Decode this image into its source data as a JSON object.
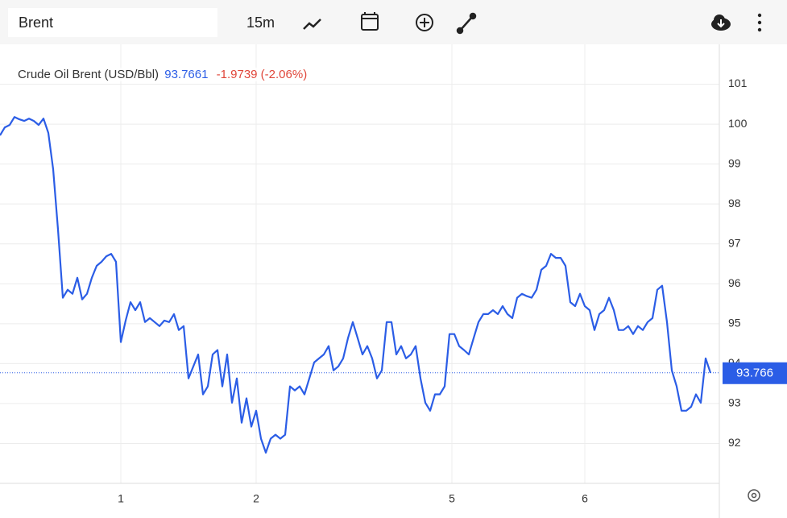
{
  "toolbar": {
    "symbol": "Brent",
    "interval": "15m"
  },
  "chart_data": {
    "type": "line",
    "title": "Crude Oil Brent (USD/Bbl)",
    "last_value_label": "93.7661",
    "change_label": "-1.9739 (-2.06%)",
    "price_tag": "93.766",
    "series": [
      {
        "name": "Crude Oil Brent (USD/Bbl)",
        "color": "#2b5de6",
        "values": [
          99.72,
          99.92,
          99.98,
          100.18,
          100.12,
          100.08,
          100.14,
          100.08,
          99.98,
          100.14,
          99.78,
          98.87,
          97.36,
          95.65,
          95.85,
          95.75,
          96.15,
          95.61,
          95.75,
          96.15,
          96.45,
          96.55,
          96.69,
          96.75,
          96.55,
          94.54,
          95.08,
          95.54,
          95.34,
          95.54,
          95.04,
          95.14,
          95.04,
          94.94,
          95.08,
          95.04,
          95.24,
          94.84,
          94.94,
          93.63,
          93.93,
          94.23,
          93.23,
          93.43,
          94.23,
          94.34,
          93.43,
          94.23,
          93.02,
          93.63,
          92.52,
          93.13,
          92.42,
          92.82,
          92.12,
          91.77,
          92.12,
          92.22,
          92.12,
          92.22,
          93.43,
          93.33,
          93.43,
          93.23,
          93.63,
          94.03,
          94.13,
          94.23,
          94.44,
          93.83,
          93.93,
          94.13,
          94.64,
          95.04,
          94.64,
          94.23,
          94.44,
          94.13,
          93.63,
          93.83,
          95.04,
          95.04,
          94.23,
          94.44,
          94.13,
          94.23,
          94.44,
          93.63,
          93.02,
          92.82,
          93.23,
          93.23,
          93.43,
          94.74,
          94.74,
          94.44,
          94.34,
          94.23,
          94.64,
          95.04,
          95.24,
          95.24,
          95.34,
          95.24,
          95.44,
          95.24,
          95.14,
          95.65,
          95.75,
          95.69,
          95.65,
          95.85,
          96.35,
          96.45,
          96.75,
          96.65,
          96.65,
          96.45,
          95.54,
          95.44,
          95.75,
          95.44,
          95.34,
          94.84,
          95.24,
          95.34,
          95.65,
          95.34,
          94.84,
          94.84,
          94.94,
          94.74,
          94.94,
          94.84,
          95.04,
          95.14,
          95.85,
          95.95,
          95.04,
          93.83,
          93.43,
          92.82,
          92.82,
          92.92,
          93.23,
          93.02,
          94.13,
          93.77
        ]
      }
    ],
    "xlim": [
      0,
      147
    ],
    "xticks": [
      {
        "value": 25,
        "label": "1"
      },
      {
        "value": 53,
        "label": "2"
      },
      {
        "value": 93.5,
        "label": "5"
      },
      {
        "value": 121,
        "label": "6"
      }
    ],
    "ylim": [
      91,
      102
    ],
    "yticks": [
      92,
      93,
      94,
      95,
      96,
      97,
      98,
      99,
      100,
      101
    ],
    "grid": true
  }
}
